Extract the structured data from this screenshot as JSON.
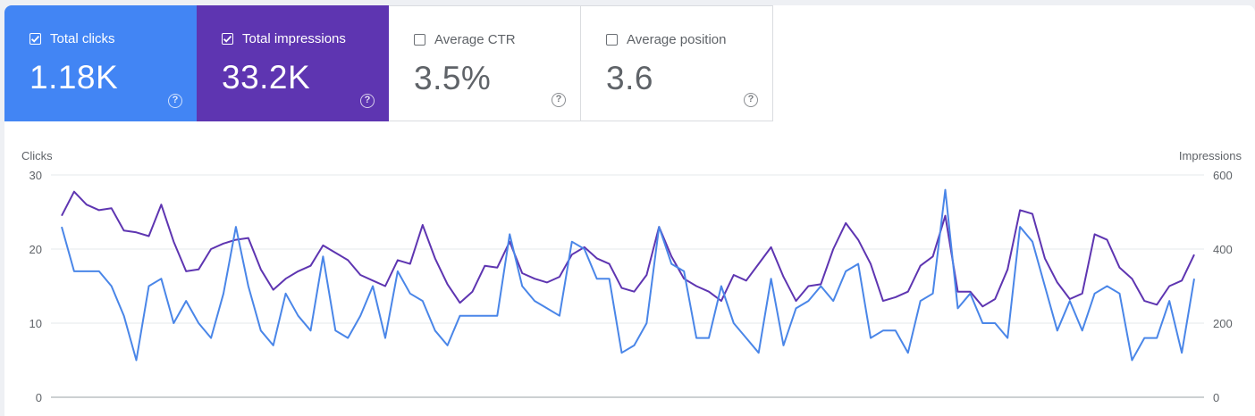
{
  "metrics": [
    {
      "label": "Total clicks",
      "value": "1.18K",
      "checked": true,
      "color": "#4285f4"
    },
    {
      "label": "Total impressions",
      "value": "33.2K",
      "checked": true,
      "color": "#5e35b1"
    },
    {
      "label": "Average CTR",
      "value": "3.5%",
      "checked": false,
      "color": "#ffffff"
    },
    {
      "label": "Average position",
      "value": "3.6",
      "checked": false,
      "color": "#ffffff"
    }
  ],
  "help_glyph": "?",
  "chart_data": {
    "type": "line",
    "y_left_label": "Clicks",
    "y_right_label": "Impressions",
    "y_left_ticks": [
      "0",
      "10",
      "20",
      "30"
    ],
    "y_right_ticks": [
      "0",
      "200",
      "400",
      "600"
    ],
    "ylim_left": [
      0,
      30
    ],
    "ylim_right": [
      0,
      600
    ],
    "grid": true,
    "series": [
      {
        "name": "Clicks",
        "axis": "left",
        "color": "#4a86e8",
        "values": [
          23,
          17,
          17,
          17,
          15,
          11,
          5,
          15,
          16,
          10,
          13,
          10,
          8,
          14,
          23,
          15,
          9,
          7,
          14,
          11,
          9,
          19,
          9,
          8,
          11,
          15,
          8,
          17,
          14,
          13,
          9,
          7,
          11,
          11,
          11,
          11,
          22,
          15,
          13,
          12,
          11,
          21,
          20,
          16,
          16,
          6,
          7,
          10,
          23,
          18,
          17,
          8,
          8,
          15,
          10,
          8,
          6,
          16,
          7,
          12,
          13,
          15,
          13,
          17,
          18,
          8,
          9,
          9,
          6,
          13,
          14,
          28,
          12,
          14,
          10,
          10,
          8,
          23,
          21,
          15,
          9,
          13,
          9,
          14,
          15,
          14,
          5,
          8,
          8,
          13,
          6,
          16
        ]
      },
      {
        "name": "Impressions",
        "axis": "right",
        "color": "#5e35b1",
        "values": [
          490,
          555,
          520,
          505,
          510,
          450,
          445,
          435,
          520,
          420,
          340,
          345,
          400,
          415,
          425,
          430,
          345,
          290,
          320,
          340,
          355,
          410,
          390,
          370,
          330,
          315,
          300,
          370,
          360,
          465,
          375,
          305,
          255,
          285,
          355,
          350,
          420,
          335,
          320,
          310,
          325,
          385,
          405,
          375,
          360,
          295,
          285,
          330,
          460,
          380,
          320,
          300,
          285,
          260,
          330,
          315,
          360,
          405,
          325,
          260,
          300,
          305,
          400,
          470,
          425,
          360,
          260,
          270,
          285,
          355,
          380,
          490,
          285,
          285,
          245,
          265,
          345,
          505,
          495,
          375,
          310,
          265,
          280,
          440,
          425,
          350,
          320,
          260,
          250,
          300,
          315,
          385
        ]
      }
    ]
  }
}
